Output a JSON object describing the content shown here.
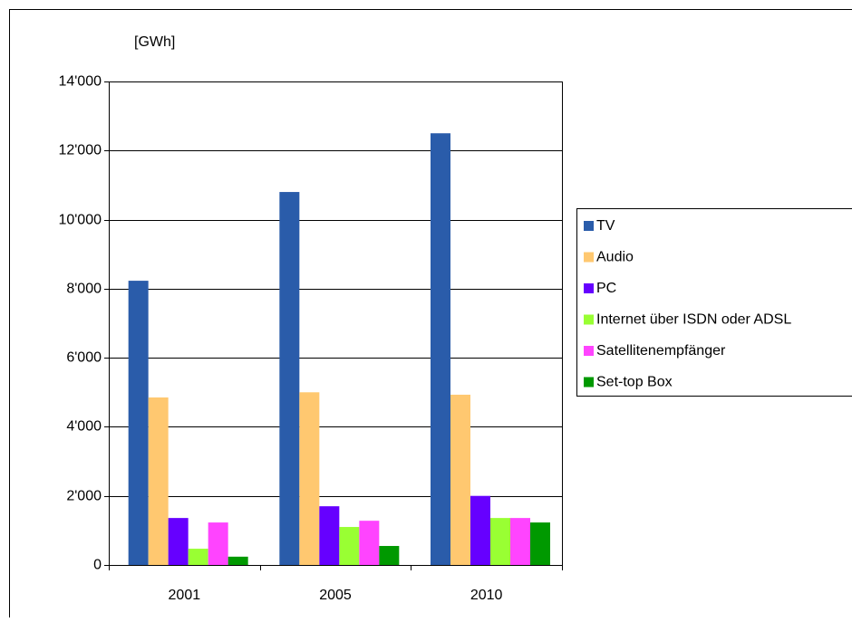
{
  "chart_data": {
    "type": "bar",
    "y_label": "[GWh]",
    "categories": [
      "2001",
      "2005",
      "2010"
    ],
    "series": [
      {
        "name": "TV",
        "color": "#2a5caa",
        "values": [
          8230,
          10800,
          12500
        ]
      },
      {
        "name": "Audio",
        "color": "#ffc870",
        "values": [
          4850,
          5000,
          4930
        ]
      },
      {
        "name": "PC",
        "color": "#6600ff",
        "values": [
          1360,
          1700,
          2000
        ]
      },
      {
        "name": "Internet über ISDN oder ADSL",
        "color": "#99ff33",
        "values": [
          470,
          1100,
          1360
        ]
      },
      {
        "name": "Satellitenempfänger",
        "color": "#ff44ff",
        "values": [
          1230,
          1280,
          1360
        ]
      },
      {
        "name": "Set-top Box",
        "color": "#009900",
        "values": [
          240,
          550,
          1230
        ]
      }
    ],
    "ylim": [
      0,
      14000
    ],
    "yticks": [
      0,
      {
        "value": 2000,
        "label": "2'000"
      },
      {
        "value": 4000,
        "label": "4'000"
      },
      {
        "value": 6000,
        "label": "6'000"
      },
      {
        "value": 8000,
        "label": "8'000"
      },
      {
        "value": 10000,
        "label": "10'000"
      },
      {
        "value": 12000,
        "label": "12'000"
      },
      {
        "value": 14000,
        "label": "14'000"
      }
    ],
    "grid": true,
    "legend": "right"
  }
}
